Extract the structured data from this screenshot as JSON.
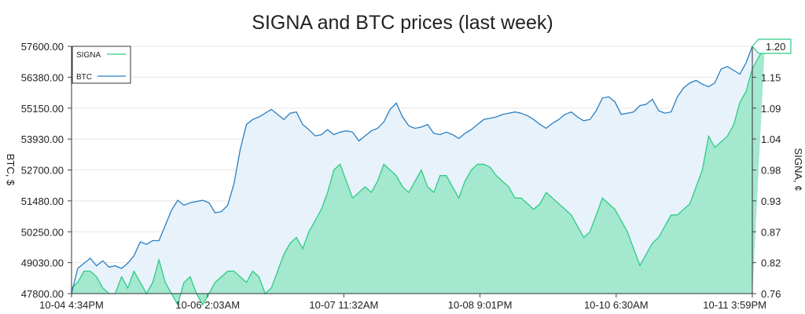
{
  "chart_data": {
    "type": "area",
    "title": "SIGNA and BTC prices (last week)",
    "x_labels": [
      "10-04 4:34PM",
      "10-06 2:03AM",
      "10-07 11:32AM",
      "10-08 9:01PM",
      "10-10 6:30AM",
      "10-11 3:59PM"
    ],
    "left_axis": {
      "label": "BTC, $",
      "ticks": [
        "57600.00",
        "56380.00",
        "55150.00",
        "53930.00",
        "52700.00",
        "51480.00",
        "50250.00",
        "49030.00",
        "47800.00"
      ],
      "ylim": [
        47800,
        57600
      ]
    },
    "right_axis": {
      "label": "SIGNA, ¢",
      "ticks": [
        "1.20",
        "1.15",
        "1.09",
        "1.04",
        "0.98",
        "0.93",
        "0.87",
        "0.82",
        "0.76"
      ],
      "ylim": [
        0.76,
        1.2
      ]
    },
    "legend": {
      "placement": "top-left",
      "items": [
        {
          "name": "SIGNA",
          "color": "#2ecc85"
        },
        {
          "name": "BTC",
          "color": "#2a7fc1"
        }
      ]
    },
    "current_value_badge": "1.20",
    "series": [
      {
        "name": "SIGNA",
        "axis": "right",
        "color": "#2ecc85",
        "fill": "#a3e8cf",
        "values": [
          0.77,
          0.78,
          0.8,
          0.8,
          0.79,
          0.77,
          0.76,
          0.76,
          0.79,
          0.77,
          0.8,
          0.78,
          0.76,
          0.78,
          0.82,
          0.78,
          0.76,
          0.74,
          0.78,
          0.79,
          0.76,
          0.74,
          0.76,
          0.78,
          0.79,
          0.8,
          0.8,
          0.79,
          0.78,
          0.8,
          0.79,
          0.76,
          0.77,
          0.8,
          0.83,
          0.85,
          0.86,
          0.84,
          0.87,
          0.89,
          0.91,
          0.94,
          0.98,
          0.99,
          0.96,
          0.93,
          0.94,
          0.95,
          0.94,
          0.96,
          0.99,
          0.98,
          0.97,
          0.95,
          0.94,
          0.96,
          0.98,
          0.95,
          0.94,
          0.97,
          0.97,
          0.95,
          0.93,
          0.96,
          0.98,
          0.99,
          0.99,
          0.985,
          0.97,
          0.96,
          0.95,
          0.93,
          0.93,
          0.92,
          0.91,
          0.92,
          0.94,
          0.93,
          0.92,
          0.91,
          0.9,
          0.88,
          0.86,
          0.87,
          0.9,
          0.93,
          0.92,
          0.91,
          0.89,
          0.87,
          0.84,
          0.81,
          0.83,
          0.85,
          0.86,
          0.88,
          0.9,
          0.9,
          0.91,
          0.92,
          0.95,
          0.98,
          1.04,
          1.02,
          1.03,
          1.04,
          1.06,
          1.1,
          1.12,
          1.16,
          1.18,
          1.2
        ]
      },
      {
        "name": "BTC",
        "axis": "left",
        "values": [
          47800,
          48800,
          49000,
          49200,
          48900,
          49100,
          48850,
          48900,
          48800,
          49000,
          49300,
          49850,
          49750,
          49900,
          49900,
          50500,
          51100,
          51500,
          51300,
          51400,
          51450,
          51500,
          51400,
          51000,
          51050,
          51300,
          52150,
          53500,
          54500,
          54700,
          54800,
          54950,
          55100,
          54900,
          54700,
          54950,
          55000,
          54500,
          54300,
          54050,
          54100,
          54300,
          54100,
          54200,
          54250,
          54200,
          53850,
          54050,
          54250,
          54350,
          54600,
          55100,
          55350,
          54800,
          54450,
          54350,
          54400,
          54500,
          54150,
          54100,
          54200,
          54100,
          53950,
          54150,
          54300,
          54500,
          54700,
          54750,
          54800,
          54900,
          54950,
          55000,
          54950,
          54850,
          54700,
          54500,
          54350,
          54550,
          54700,
          54900,
          55000,
          54800,
          54650,
          54700,
          55050,
          55550,
          55600,
          55400,
          54900,
          54950,
          55000,
          55250,
          55300,
          55500,
          55050,
          54950,
          55000,
          55600,
          55950,
          56150,
          56250,
          56100,
          56000,
          56150,
          56700,
          56800,
          56650,
          56500,
          56950,
          57600
        ]
      }
    ]
  }
}
